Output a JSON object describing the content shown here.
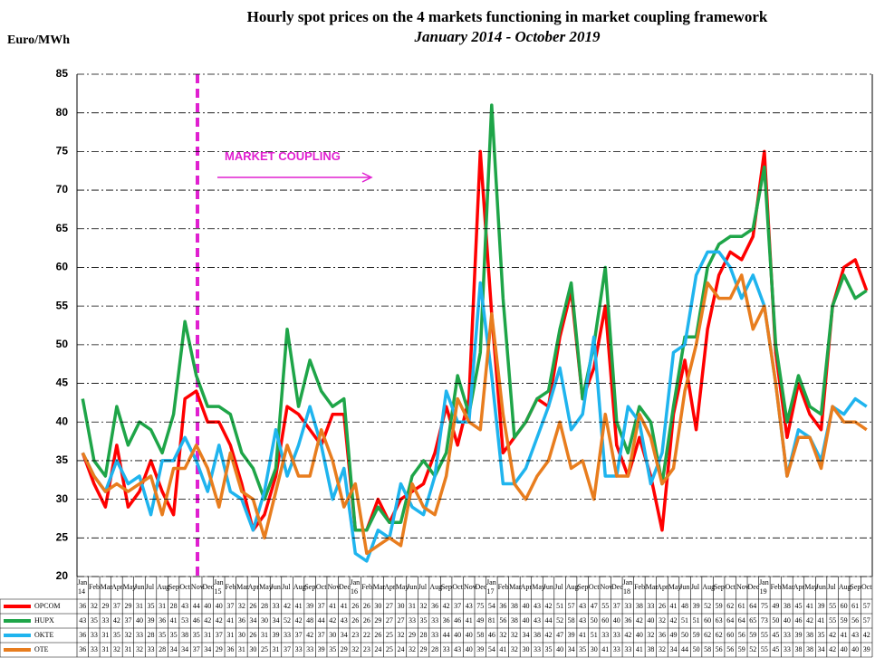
{
  "chart_data": {
    "type": "line",
    "title": "Hourly spot prices on the 4 markets functioning in market coupling framework",
    "subtitle": "January 2014 - October 2019",
    "y_label": "Euro/MWh",
    "annotation": "MARKET COUPLING",
    "categories": [
      "Jan 14",
      "Feb",
      "Mar",
      "Apr",
      "May",
      "Jun",
      "Jul",
      "Aug",
      "Sep",
      "Oct",
      "Nov",
      "Dec",
      "Jan 15",
      "Feb",
      "Mar",
      "Apr",
      "May",
      "Jun",
      "Jul",
      "Aug",
      "Sep",
      "Oct",
      "Nov",
      "Dec",
      "Jan 16",
      "Feb",
      "Mar",
      "Apr",
      "May",
      "Jun",
      "Jul",
      "Aug",
      "Sep",
      "Oct",
      "Nov",
      "Dec",
      "Jan 17",
      "Feb",
      "Mar",
      "Apr",
      "May",
      "Jun",
      "Jul",
      "Aug",
      "Sep",
      "Oct",
      "Nov",
      "Dec",
      "Jan 18",
      "Feb",
      "Mar",
      "Apr",
      "May",
      "Jun",
      "Jul",
      "Aug",
      "Sep",
      "Oct",
      "Nov",
      "Dec",
      "Jan 19",
      "Feb",
      "Mar",
      "Apr",
      "May",
      "Jun",
      "Jul",
      "Aug",
      "Sep",
      "Oct"
    ],
    "series": [
      {
        "name": "OPCOM",
        "color": "#ff0000",
        "values": [
          36,
          32,
          29,
          37,
          29,
          31,
          35,
          31,
          28,
          43,
          44,
          40,
          40,
          37,
          32,
          26,
          28,
          33,
          42,
          41,
          39,
          37,
          41,
          41,
          26,
          26,
          30,
          27,
          30,
          31,
          32,
          36,
          42,
          37,
          43,
          75,
          54,
          36,
          38,
          40,
          43,
          42,
          51,
          57,
          43,
          47,
          55,
          37,
          33,
          38,
          33,
          26,
          41,
          48,
          39,
          52,
          59,
          62,
          61,
          64,
          75,
          49,
          38,
          45,
          41,
          39,
          55,
          60,
          61,
          57
        ]
      },
      {
        "name": "HUPX",
        "color": "#1ea548",
        "values": [
          43,
          35,
          33,
          42,
          37,
          40,
          39,
          36,
          41,
          53,
          46,
          42,
          42,
          41,
          36,
          34,
          30,
          34,
          52,
          42,
          48,
          44,
          42,
          43,
          26,
          26,
          29,
          27,
          27,
          33,
          35,
          33,
          36,
          46,
          41,
          49,
          81,
          56,
          38,
          40,
          43,
          44,
          52,
          58,
          43,
          50,
          60,
          40,
          36,
          42,
          40,
          32,
          42,
          51,
          51,
          60,
          63,
          64,
          64,
          65,
          73,
          50,
          40,
          46,
          42,
          41,
          55,
          59,
          56,
          57
        ]
      },
      {
        "name": "OKTE",
        "color": "#1fb4ee",
        "values": [
          36,
          33,
          31,
          35,
          32,
          33,
          28,
          35,
          35,
          38,
          35,
          31,
          37,
          31,
          30,
          26,
          31,
          39,
          33,
          37,
          42,
          37,
          30,
          34,
          23,
          22,
          26,
          25,
          32,
          29,
          28,
          33,
          44,
          40,
          40,
          58,
          46,
          32,
          32,
          34,
          38,
          42,
          47,
          39,
          41,
          51,
          33,
          33,
          42,
          40,
          32,
          36,
          49,
          50,
          59,
          62,
          62,
          60,
          56,
          59,
          55,
          45,
          33,
          39,
          38,
          35,
          42,
          41,
          43,
          42
        ]
      },
      {
        "name": "OTE",
        "color": "#e87d1e",
        "values": [
          36,
          33,
          31,
          32,
          31,
          32,
          33,
          28,
          34,
          34,
          37,
          34,
          29,
          36,
          31,
          30,
          25,
          31,
          37,
          33,
          33,
          39,
          35,
          29,
          32,
          23,
          24,
          25,
          24,
          32,
          29,
          28,
          33,
          43,
          40,
          39,
          54,
          41,
          32,
          30,
          33,
          35,
          40,
          34,
          35,
          30,
          41,
          33,
          33,
          41,
          38,
          32,
          34,
          44,
          50,
          58,
          56,
          56,
          59,
          52,
          55,
          45,
          33,
          38,
          38,
          34,
          42,
          40,
          40,
          39
        ]
      }
    ],
    "ylim": [
      20,
      85
    ],
    "yticks": [
      20,
      25,
      30,
      35,
      40,
      45,
      50,
      55,
      60,
      65,
      70,
      75,
      80,
      85
    ],
    "grid": true
  }
}
